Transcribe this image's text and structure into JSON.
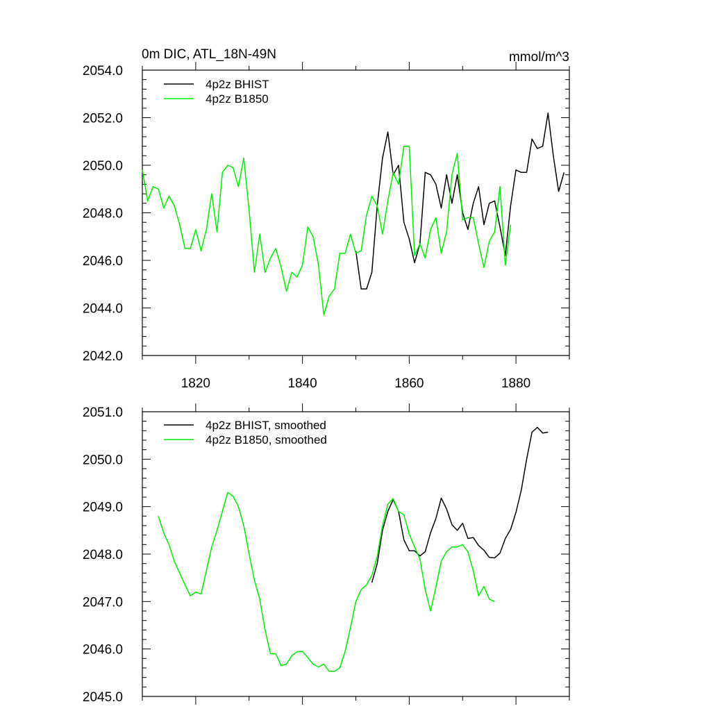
{
  "figure": {
    "title_left": "0m DIC, ATL_18N-49N",
    "title_right": "mmol/m^3"
  },
  "colors": {
    "BHIST": "#000000",
    "B1850": "#00ee00"
  },
  "chart_data": [
    {
      "type": "line",
      "title": "0m DIC, ATL_18N-49N",
      "units": "mmol/m^3",
      "xlabel": "",
      "ylabel": "",
      "xlim": [
        1810,
        1890
      ],
      "ylim": [
        2042,
        2054
      ],
      "x_ticks": [
        1820,
        1840,
        1860,
        1880
      ],
      "x_tick_labels": [
        "1820",
        "1840",
        "1860",
        "1880"
      ],
      "y_ticks": [
        2042,
        2044,
        2046,
        2048,
        2050,
        2052,
        2054
      ],
      "y_tick_labels": [
        "2042.0",
        "2044.0",
        "2046.0",
        "2048.0",
        "2050.0",
        "2052.0",
        "2054.0"
      ],
      "legend": [
        "4p2z BHIST",
        "4p2z B1850"
      ],
      "legend_position": "top-left",
      "series": [
        {
          "name": "4p2z BHIST",
          "color": "#000000",
          "x": [
            1850,
            1851,
            1852,
            1853,
            1854,
            1855,
            1856,
            1857,
            1858,
            1859,
            1860,
            1861,
            1862,
            1863,
            1864,
            1865,
            1866,
            1867,
            1868,
            1869,
            1870,
            1871,
            1872,
            1873,
            1874,
            1875,
            1876,
            1877,
            1878,
            1879,
            1880,
            1881,
            1882,
            1883,
            1884,
            1885,
            1886,
            1887,
            1888,
            1889
          ],
          "values": [
            2046.4,
            2044.8,
            2044.8,
            2045.5,
            2048.3,
            2050.3,
            2051.4,
            2049.6,
            2050.0,
            2047.6,
            2046.9,
            2045.9,
            2046.7,
            2049.7,
            2049.6,
            2049.2,
            2048.2,
            2049.6,
            2048.4,
            2049.6,
            2048.0,
            2047.3,
            2048.4,
            2049.1,
            2047.5,
            2048.4,
            2048.5,
            2047.4,
            2046.2,
            2048.3,
            2049.8,
            2049.7,
            2049.7,
            2051.1,
            2050.7,
            2050.8,
            2052.2,
            2050.4,
            2048.9,
            2049.7
          ]
        },
        {
          "name": "4p2z B1850",
          "color": "#00ee00",
          "x": [
            1810,
            1811,
            1812,
            1813,
            1814,
            1815,
            1816,
            1817,
            1818,
            1819,
            1820,
            1821,
            1822,
            1823,
            1824,
            1825,
            1826,
            1827,
            1828,
            1829,
            1830,
            1831,
            1832,
            1833,
            1834,
            1835,
            1836,
            1837,
            1838,
            1839,
            1840,
            1841,
            1842,
            1843,
            1844,
            1845,
            1846,
            1847,
            1848,
            1849,
            1850,
            1851,
            1852,
            1853,
            1854,
            1855,
            1856,
            1857,
            1858,
            1859,
            1860,
            1861,
            1862,
            1863,
            1864,
            1865,
            1866,
            1867,
            1868,
            1869,
            1870,
            1871,
            1872,
            1873,
            1874,
            1875,
            1876,
            1877,
            1878,
            1879
          ],
          "values": [
            2049.8,
            2048.5,
            2049.1,
            2049.0,
            2048.2,
            2048.7,
            2048.3,
            2047.5,
            2046.5,
            2046.5,
            2047.3,
            2046.4,
            2047.3,
            2048.8,
            2047.2,
            2049.7,
            2050.0,
            2049.9,
            2049.1,
            2050.3,
            2048.1,
            2045.5,
            2047.1,
            2045.5,
            2046.1,
            2046.5,
            2045.7,
            2044.7,
            2045.5,
            2045.3,
            2045.8,
            2047.4,
            2047.0,
            2045.8,
            2043.7,
            2044.5,
            2044.8,
            2046.3,
            2046.3,
            2047.1,
            2046.3,
            2046.4,
            2047.9,
            2048.7,
            2048.3,
            2047.1,
            2048.5,
            2049.7,
            2049.2,
            2050.8,
            2050.8,
            2046.2,
            2046.7,
            2046.1,
            2047.3,
            2047.8,
            2046.3,
            2047.2,
            2049.6,
            2050.5,
            2047.7,
            2047.8,
            2047.8,
            2046.7,
            2045.7,
            2046.8,
            2047.2,
            2049.1,
            2045.8,
            2047.5
          ]
        }
      ]
    },
    {
      "type": "line",
      "title": "",
      "xlabel": "",
      "ylabel": "",
      "xlim": [
        1810,
        1890
      ],
      "ylim": [
        2045,
        2051
      ],
      "x_ticks": [
        1820,
        1840,
        1860,
        1880
      ],
      "x_tick_labels": [],
      "y_ticks": [
        2045,
        2046,
        2047,
        2048,
        2049,
        2050,
        2051
      ],
      "y_tick_labels": [
        "2045.0",
        "2046.0",
        "2047.0",
        "2048.0",
        "2049.0",
        "2050.0",
        "2051.0"
      ],
      "legend": [
        "4p2z BHIST, smoothed",
        "4p2z B1850, smoothed"
      ],
      "legend_position": "top-left",
      "series": [
        {
          "name": "4p2z BHIST, smoothed",
          "color": "#000000",
          "x": [
            1853,
            1854,
            1855,
            1856,
            1857,
            1858,
            1859,
            1860,
            1861,
            1862,
            1863,
            1864,
            1865,
            1866,
            1867,
            1868,
            1869,
            1870,
            1871,
            1872,
            1873,
            1874,
            1875,
            1876,
            1877,
            1878,
            1879,
            1880,
            1881,
            1882,
            1883,
            1884,
            1885,
            1886
          ],
          "values": [
            2047.4,
            2047.8,
            2048.5,
            2048.9,
            2049.15,
            2048.9,
            2048.3,
            2048.07,
            2048.07,
            2047.96,
            2048.05,
            2048.45,
            2048.75,
            2049.18,
            2048.95,
            2048.62,
            2048.5,
            2048.65,
            2048.33,
            2048.35,
            2048.18,
            2048.08,
            2047.93,
            2047.92,
            2048.02,
            2048.33,
            2048.52,
            2048.88,
            2049.35,
            2050.0,
            2050.57,
            2050.67,
            2050.55,
            2050.57
          ]
        },
        {
          "name": "4p2z B1850, smoothed",
          "color": "#00ee00",
          "x": [
            1813,
            1814,
            1815,
            1816,
            1817,
            1818,
            1819,
            1820,
            1821,
            1822,
            1823,
            1824,
            1825,
            1826,
            1827,
            1828,
            1829,
            1830,
            1831,
            1832,
            1833,
            1834,
            1835,
            1836,
            1837,
            1838,
            1839,
            1840,
            1841,
            1842,
            1843,
            1844,
            1845,
            1846,
            1847,
            1848,
            1849,
            1850,
            1851,
            1852,
            1853,
            1854,
            1855,
            1856,
            1857,
            1858,
            1859,
            1860,
            1861,
            1862,
            1863,
            1864,
            1865,
            1866,
            1867,
            1868,
            1869,
            1870,
            1871,
            1872,
            1873,
            1874,
            1875,
            1876
          ],
          "values": [
            2048.8,
            2048.45,
            2048.2,
            2047.85,
            2047.6,
            2047.35,
            2047.12,
            2047.2,
            2047.16,
            2047.65,
            2048.15,
            2048.5,
            2048.9,
            2049.3,
            2049.22,
            2049.0,
            2048.6,
            2048.0,
            2047.45,
            2047.05,
            2046.4,
            2045.9,
            2045.9,
            2045.65,
            2045.68,
            2045.86,
            2045.94,
            2045.95,
            2045.82,
            2045.68,
            2045.62,
            2045.68,
            2045.53,
            2045.53,
            2045.6,
            2045.95,
            2046.45,
            2047.0,
            2047.25,
            2047.35,
            2047.55,
            2047.95,
            2048.6,
            2049.05,
            2049.17,
            2048.9,
            2048.83,
            2048.42,
            2048.15,
            2047.9,
            2047.25,
            2046.8,
            2047.3,
            2047.85,
            2048.05,
            2048.15,
            2048.15,
            2048.2,
            2048.05,
            2047.65,
            2047.12,
            2047.32,
            2047.05,
            2047.0
          ]
        }
      ]
    }
  ]
}
